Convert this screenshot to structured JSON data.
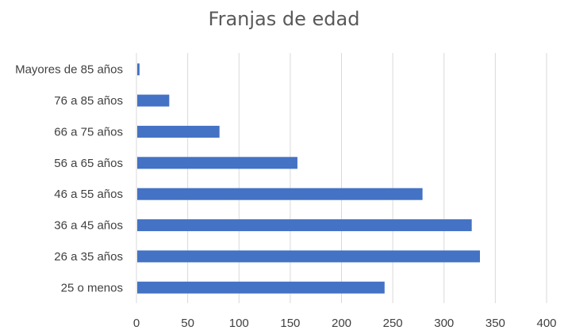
{
  "chart_data": {
    "type": "bar",
    "orientation": "horizontal",
    "title": "Franjas de edad",
    "xlabel": "",
    "ylabel": "",
    "categories": [
      "Mayores de 85 años",
      "76 a 85 años",
      "66 a 75 años",
      "56 a 65 años",
      "46 a 55 años",
      "36 a 45 años",
      "26 a 35 años",
      "25 o menos"
    ],
    "values": [
      3,
      32,
      81,
      157,
      279,
      327,
      335,
      242
    ],
    "xlim": [
      0,
      400
    ],
    "xticks": [
      "0",
      "50",
      "100",
      "150",
      "200",
      "250",
      "300",
      "350",
      "400"
    ],
    "grid": "vertical",
    "legend": "none",
    "bar_color": "#4472C4"
  }
}
